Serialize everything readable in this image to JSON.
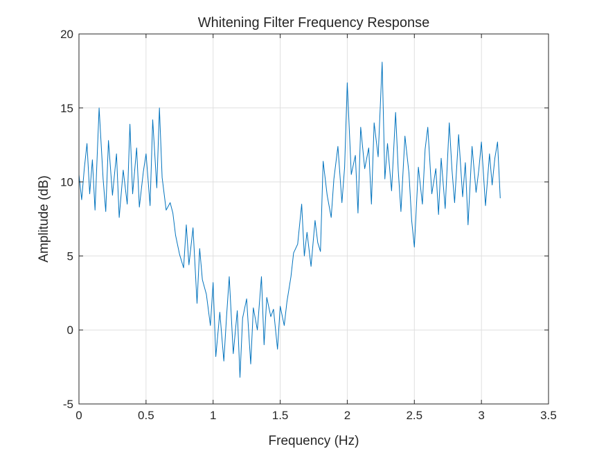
{
  "chart_data": {
    "type": "line",
    "title": "Whitening Filter Frequency Response",
    "xlabel": "Frequency (Hz)",
    "ylabel": "Amplitude (dB)",
    "xlim": [
      0,
      3.5
    ],
    "ylim": [
      -5,
      20
    ],
    "xticks": [
      0,
      0.5,
      1,
      1.5,
      2,
      2.5,
      3,
      3.5
    ],
    "xtick_labels": [
      "0",
      "0.5",
      "1",
      "1.5",
      "2",
      "2.5",
      "3",
      "3.5"
    ],
    "yticks": [
      -5,
      0,
      5,
      10,
      15,
      20
    ],
    "ytick_labels": [
      "-5",
      "0",
      "5",
      "10",
      "15",
      "20"
    ],
    "grid": true,
    "series": [
      {
        "color": "#0072bd",
        "x": [
          0,
          0.02,
          0.04,
          0.06,
          0.08,
          0.1,
          0.12,
          0.15,
          0.18,
          0.2,
          0.22,
          0.25,
          0.28,
          0.3,
          0.33,
          0.36,
          0.38,
          0.4,
          0.43,
          0.45,
          0.48,
          0.5,
          0.53,
          0.55,
          0.58,
          0.6,
          0.62,
          0.65,
          0.68,
          0.7,
          0.72,
          0.75,
          0.78,
          0.8,
          0.82,
          0.85,
          0.88,
          0.9,
          0.92,
          0.95,
          0.98,
          1.0,
          1.02,
          1.05,
          1.08,
          1.1,
          1.12,
          1.15,
          1.18,
          1.2,
          1.22,
          1.25,
          1.28,
          1.3,
          1.33,
          1.36,
          1.38,
          1.4,
          1.43,
          1.45,
          1.48,
          1.5,
          1.53,
          1.55,
          1.58,
          1.6,
          1.63,
          1.66,
          1.68,
          1.7,
          1.73,
          1.76,
          1.78,
          1.8,
          1.82,
          1.85,
          1.88,
          1.9,
          1.93,
          1.96,
          1.98,
          2.0,
          2.03,
          2.06,
          2.08,
          2.1,
          2.13,
          2.16,
          2.18,
          2.2,
          2.23,
          2.26,
          2.28,
          2.3,
          2.33,
          2.36,
          2.38,
          2.4,
          2.43,
          2.46,
          2.48,
          2.5,
          2.53,
          2.56,
          2.58,
          2.6,
          2.63,
          2.66,
          2.68,
          2.7,
          2.73,
          2.76,
          2.78,
          2.8,
          2.83,
          2.86,
          2.88,
          2.9,
          2.93,
          2.96,
          2.98,
          3.0,
          3.03,
          3.06,
          3.08,
          3.1,
          3.12,
          3.14
        ],
        "y": [
          10.5,
          8.8,
          10.9,
          12.6,
          9.2,
          11.5,
          8.1,
          15.0,
          10.2,
          8.0,
          12.8,
          9.1,
          11.9,
          7.6,
          10.8,
          8.5,
          13.9,
          9.2,
          12.3,
          8.3,
          10.7,
          11.9,
          8.4,
          14.2,
          9.6,
          15.0,
          10.3,
          8.1,
          8.6,
          7.9,
          6.4,
          5.1,
          4.2,
          7.1,
          4.4,
          6.9,
          1.8,
          5.5,
          3.4,
          2.4,
          0.3,
          3.2,
          -1.8,
          1.2,
          -2.1,
          0.9,
          3.6,
          -1.6,
          1.3,
          -3.2,
          0.8,
          2.1,
          -2.3,
          1.5,
          0.0,
          3.6,
          -1.0,
          2.2,
          0.9,
          1.4,
          -1.3,
          1.6,
          0.3,
          1.9,
          3.6,
          5.2,
          5.8,
          8.5,
          5.0,
          6.6,
          4.3,
          7.4,
          5.9,
          5.3,
          11.4,
          9.1,
          7.6,
          10.2,
          12.4,
          8.6,
          11.0,
          16.7,
          10.5,
          11.8,
          7.9,
          13.7,
          10.9,
          12.3,
          8.5,
          14.0,
          11.7,
          18.1,
          10.2,
          12.6,
          9.4,
          14.7,
          10.8,
          8.0,
          13.1,
          10.6,
          7.4,
          5.6,
          11.0,
          8.5,
          12.2,
          13.7,
          9.2,
          10.9,
          7.8,
          11.6,
          8.2,
          14.0,
          10.9,
          8.6,
          13.2,
          9.0,
          11.3,
          7.1,
          12.4,
          9.3,
          10.8,
          12.7,
          8.4,
          11.9,
          9.8,
          11.6,
          12.7,
          8.9
        ]
      }
    ]
  }
}
